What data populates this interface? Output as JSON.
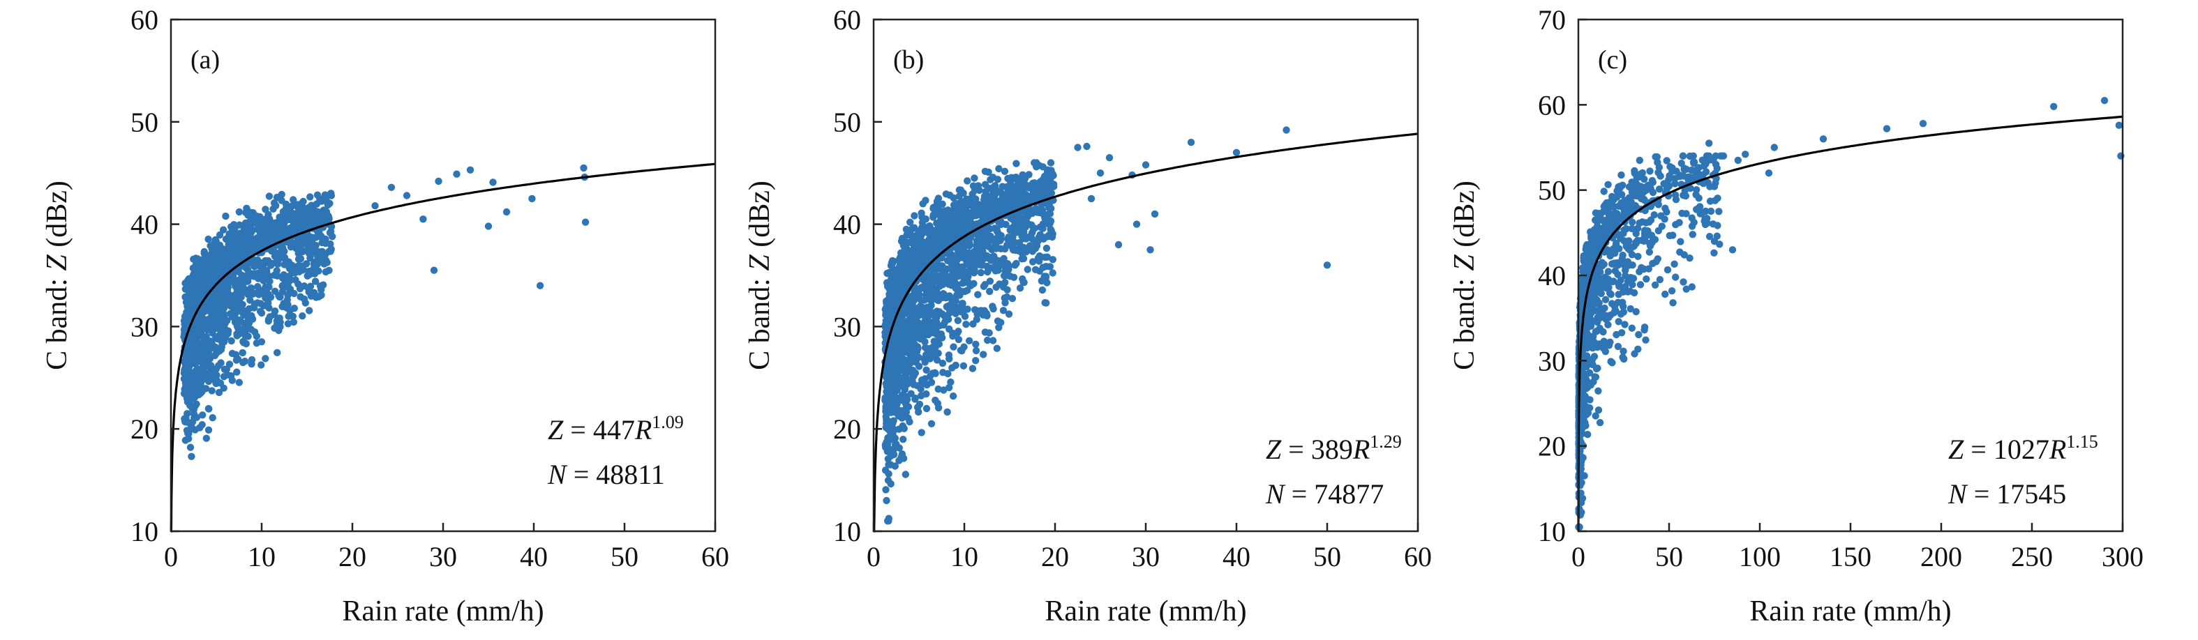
{
  "colors": {
    "points": "#2e75b6",
    "fit_line": "#000000",
    "axes": "#222222",
    "background": "#ffffff"
  },
  "chart_data": [
    {
      "type": "scatter",
      "panel_label": "(a)",
      "xlabel": "Rain rate (mm/h)",
      "ylabel_prefix": "C band: ",
      "ylabel_var": "Z",
      "ylabel_suffix": " (dBz)",
      "xlim": [
        0,
        60
      ],
      "ylim": [
        10,
        60
      ],
      "xticks": [
        0,
        10,
        20,
        30,
        40,
        50,
        60
      ],
      "yticks": [
        10,
        20,
        30,
        40,
        50,
        60
      ],
      "fit": {
        "a": 447,
        "b": 1.09
      },
      "equation": {
        "lhs": "Z",
        "eq": " = ",
        "coef": "447",
        "var": "R",
        "exp": "1.09"
      },
      "count": {
        "lhs": "N",
        "eq": " = ",
        "value": "48811"
      },
      "cloud": {
        "n": 1800,
        "rmax": 20,
        "lmin": 0.15,
        "lmax": 1.25,
        "spread_low": 5.5,
        "spread_high": 3.2,
        "skew": 0.55,
        "ymin": 13,
        "ymax": 45
      },
      "outliers": [
        [
          22.5,
          41.8
        ],
        [
          24.3,
          43.6
        ],
        [
          26.0,
          42.8
        ],
        [
          27.8,
          40.5
        ],
        [
          29.0,
          35.5
        ],
        [
          29.5,
          44.2
        ],
        [
          31.5,
          44.9
        ],
        [
          33.0,
          45.3
        ],
        [
          35.0,
          39.8
        ],
        [
          35.5,
          44.1
        ],
        [
          37.0,
          41.2
        ],
        [
          39.8,
          42.5
        ],
        [
          40.7,
          34.0
        ],
        [
          45.5,
          45.5
        ],
        [
          45.6,
          44.6
        ],
        [
          45.7,
          40.2
        ]
      ]
    },
    {
      "type": "scatter",
      "panel_label": "(b)",
      "xlabel": "Rain rate (mm/h)",
      "ylabel_prefix": "C band: ",
      "ylabel_var": "Z",
      "ylabel_suffix": " (dBz)",
      "xlim": [
        0,
        60
      ],
      "ylim": [
        10,
        60
      ],
      "xticks": [
        0,
        10,
        20,
        30,
        40,
        50,
        60
      ],
      "yticks": [
        10,
        20,
        30,
        40,
        50,
        60
      ],
      "fit": {
        "a": 389,
        "b": 1.29
      },
      "equation": {
        "lhs": "Z",
        "eq": " = ",
        "coef": "389",
        "var": "R",
        "exp": "1.29"
      },
      "count": {
        "lhs": "N",
        "eq": " = ",
        "value": "74877"
      },
      "cloud": {
        "n": 2300,
        "rmax": 21,
        "lmin": 0.1,
        "lmax": 1.3,
        "spread_low": 6.5,
        "spread_high": 3.5,
        "skew": 0.65,
        "ymin": 11,
        "ymax": 46
      },
      "outliers": [
        [
          22.5,
          47.5
        ],
        [
          23.5,
          47.6
        ],
        [
          24.0,
          42.5
        ],
        [
          25.0,
          45.0
        ],
        [
          26.0,
          46.5
        ],
        [
          27.0,
          38.0
        ],
        [
          28.5,
          44.8
        ],
        [
          29.0,
          40.0
        ],
        [
          30.0,
          45.8
        ],
        [
          30.5,
          37.5
        ],
        [
          31.0,
          41.0
        ],
        [
          35.0,
          48.0
        ],
        [
          40.0,
          47.0
        ],
        [
          45.5,
          49.2
        ],
        [
          50.0,
          36.0
        ]
      ]
    },
    {
      "type": "scatter",
      "panel_label": "(c)",
      "xlabel": "Rain rate (mm/h)",
      "ylabel_prefix": "C band: ",
      "ylabel_var": "Z",
      "ylabel_suffix": " (dBz)",
      "xlim": [
        0,
        300
      ],
      "ylim": [
        10,
        70
      ],
      "xticks": [
        0,
        50,
        100,
        150,
        200,
        250,
        300
      ],
      "yticks": [
        10,
        20,
        30,
        40,
        50,
        60,
        70
      ],
      "fit": {
        "a": 1027,
        "b": 1.15
      },
      "equation": {
        "lhs": "Z",
        "eq": " = ",
        "coef": "1027",
        "var": "R",
        "exp": "1.15"
      },
      "count": {
        "lhs": "N",
        "eq": " = ",
        "value": "17545"
      },
      "cloud": {
        "n": 1300,
        "rmax": 70,
        "lmin": -0.7,
        "lmax": 1.9,
        "spread_low": 7.0,
        "spread_high": 4.5,
        "skew": 0.7,
        "ymin": 10.5,
        "ymax": 54
      },
      "outliers": [
        [
          72,
          55.5
        ],
        [
          75,
          44.0
        ],
        [
          80,
          54.0
        ],
        [
          85,
          43.0
        ],
        [
          88,
          53.5
        ],
        [
          92,
          54.2
        ],
        [
          105,
          52.0
        ],
        [
          108,
          55.0
        ],
        [
          135,
          56.0
        ],
        [
          170,
          57.2
        ],
        [
          190,
          57.8
        ],
        [
          262,
          59.8
        ],
        [
          290,
          60.5
        ],
        [
          298,
          57.6
        ],
        [
          299,
          54.0
        ]
      ]
    }
  ]
}
